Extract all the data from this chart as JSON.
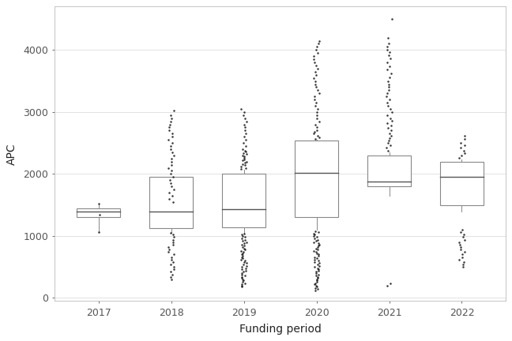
{
  "years": [
    "2017",
    "2018",
    "2019",
    "2020",
    "2021",
    "2022"
  ],
  "boxes": [
    {
      "q1": 1300,
      "median": 1390,
      "q3": 1440,
      "whisker_low": 1060,
      "whisker_high": 1510,
      "outliers": [
        1520,
        1340,
        1060
      ]
    },
    {
      "q1": 1120,
      "median": 1390,
      "q3": 1950,
      "whisker_low": 1050,
      "whisker_high": 1960,
      "outliers": [
        300,
        340,
        380,
        420,
        460,
        500,
        540,
        580,
        620,
        660,
        700,
        740,
        780,
        820,
        860,
        900,
        940,
        980,
        1020,
        1050,
        1550,
        1600,
        1650,
        1700,
        1750,
        1800,
        1850,
        1900,
        1950,
        2000,
        2050,
        2100,
        2150,
        2200,
        2250,
        2300,
        2350,
        2400,
        2450,
        2500,
        2550,
        2600,
        2650,
        2700,
        2750,
        2800,
        2850,
        2900,
        2950,
        3020
      ]
    },
    {
      "q1": 1140,
      "median": 1430,
      "q3": 2010,
      "whisker_low": 1050,
      "whisker_high": 2070,
      "outliers": [
        180,
        200,
        220,
        240,
        260,
        280,
        300,
        320,
        340,
        360,
        380,
        400,
        420,
        440,
        460,
        480,
        500,
        520,
        540,
        560,
        580,
        600,
        620,
        640,
        660,
        680,
        700,
        720,
        740,
        760,
        780,
        800,
        820,
        840,
        860,
        880,
        900,
        920,
        940,
        960,
        980,
        1000,
        1020,
        1040,
        2080,
        2100,
        2120,
        2140,
        2160,
        2180,
        2200,
        2220,
        2240,
        2260,
        2280,
        2300,
        2320,
        2340,
        2360,
        2380,
        2400,
        2450,
        2500,
        2550,
        2600,
        2650,
        2700,
        2750,
        2800,
        2850,
        2900,
        2950,
        3000,
        3050
      ]
    },
    {
      "q1": 1310,
      "median": 2020,
      "q3": 2540,
      "whisker_low": 1100,
      "whisker_high": 2550,
      "outliers": [
        120,
        140,
        160,
        180,
        200,
        220,
        240,
        260,
        280,
        300,
        320,
        340,
        360,
        380,
        400,
        420,
        440,
        460,
        480,
        500,
        520,
        540,
        560,
        580,
        600,
        620,
        640,
        660,
        680,
        700,
        720,
        740,
        760,
        780,
        800,
        820,
        840,
        860,
        880,
        900,
        920,
        940,
        960,
        980,
        1000,
        1020,
        1040,
        1060,
        1080,
        2570,
        2590,
        2620,
        2650,
        2680,
        2710,
        2750,
        2800,
        2850,
        2900,
        2950,
        3000,
        3050,
        3100,
        3150,
        3200,
        3250,
        3300,
        3350,
        3400,
        3450,
        3500,
        3550,
        3600,
        3650,
        3700,
        3750,
        3800,
        3850,
        3900,
        3950,
        4000,
        4050,
        4100,
        4150
      ]
    },
    {
      "q1": 1800,
      "median": 1880,
      "q3": 2300,
      "whisker_low": 1650,
      "whisker_high": 2350,
      "outliers": [
        200,
        240,
        2380,
        2420,
        2460,
        2500,
        2540,
        2580,
        2620,
        2660,
        2700,
        2740,
        2780,
        2820,
        2860,
        2900,
        2950,
        3000,
        3050,
        3100,
        3150,
        3200,
        3250,
        3300,
        3350,
        3400,
        3450,
        3500,
        3560,
        3620,
        3680,
        3740,
        3800,
        3860,
        3920,
        3970,
        4010,
        4060,
        4100,
        4200,
        4500
      ]
    },
    {
      "q1": 1500,
      "median": 1960,
      "q3": 2200,
      "whisker_low": 1400,
      "whisker_high": 2240,
      "outliers": [
        500,
        540,
        580,
        620,
        660,
        700,
        740,
        780,
        820,
        860,
        900,
        940,
        980,
        1020,
        1060,
        1100,
        2260,
        2300,
        2340,
        2380,
        2420,
        2460,
        2500,
        2560,
        2620
      ]
    }
  ],
  "xlabel": "Funding period",
  "ylabel": "APC",
  "ylim": [
    -50,
    4700
  ],
  "yticks": [
    0,
    1000,
    2000,
    3000,
    4000
  ],
  "box_facecolor": "#ffffff",
  "box_edgecolor": "#888888",
  "median_color": "#555555",
  "whisker_color": "#888888",
  "flier_color": "#111111",
  "background_color": "#ffffff",
  "grid_color": "#dddddd",
  "box_width": 0.6,
  "figsize": [
    6.48,
    4.32
  ],
  "dpi": 100
}
